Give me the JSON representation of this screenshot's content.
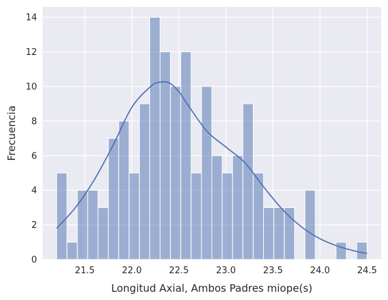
{
  "chart_data": {
    "type": "bar",
    "title": "",
    "xlabel": "Longitud Axial, Ambos Padres miope(s)",
    "ylabel": "Frecuencia",
    "bin_start": 21.2,
    "bin_width": 0.11,
    "counts": [
      5,
      1,
      4,
      4,
      3,
      7,
      8,
      5,
      9,
      14,
      12,
      10,
      12,
      5,
      10,
      6,
      5,
      6,
      9,
      5,
      3,
      3,
      3,
      0,
      4,
      0,
      0,
      1,
      0,
      1
    ],
    "xlim": [
      21.05,
      24.65
    ],
    "ylim": [
      0,
      14.6
    ],
    "xticks": [
      21.5,
      22.0,
      22.5,
      23.0,
      23.5,
      24.0,
      24.5
    ],
    "xtick_labels": [
      "21.5",
      "22.0",
      "22.5",
      "23.0",
      "23.5",
      "24.0",
      "24.5"
    ],
    "yticks": [
      0,
      2,
      4,
      6,
      8,
      10,
      12,
      14
    ],
    "ytick_labels": [
      "0",
      "2",
      "4",
      "6",
      "8",
      "10",
      "12",
      "14"
    ],
    "kde": {
      "x": [
        21.2,
        21.4,
        21.6,
        21.8,
        22.0,
        22.2,
        22.3,
        22.4,
        22.5,
        22.6,
        22.8,
        23.0,
        23.2,
        23.4,
        23.6,
        23.8,
        24.0,
        24.2,
        24.4,
        24.5
      ],
      "y": [
        1.8,
        3.0,
        4.6,
        6.6,
        8.8,
        10.0,
        10.25,
        10.2,
        9.7,
        8.9,
        7.4,
        6.5,
        5.6,
        4.2,
        2.9,
        1.9,
        1.2,
        0.75,
        0.45,
        0.35
      ]
    },
    "grid": true,
    "bar_color": "#4C72B0",
    "kde_color": "#4C72B0",
    "background_color": "#EAEAF2"
  }
}
